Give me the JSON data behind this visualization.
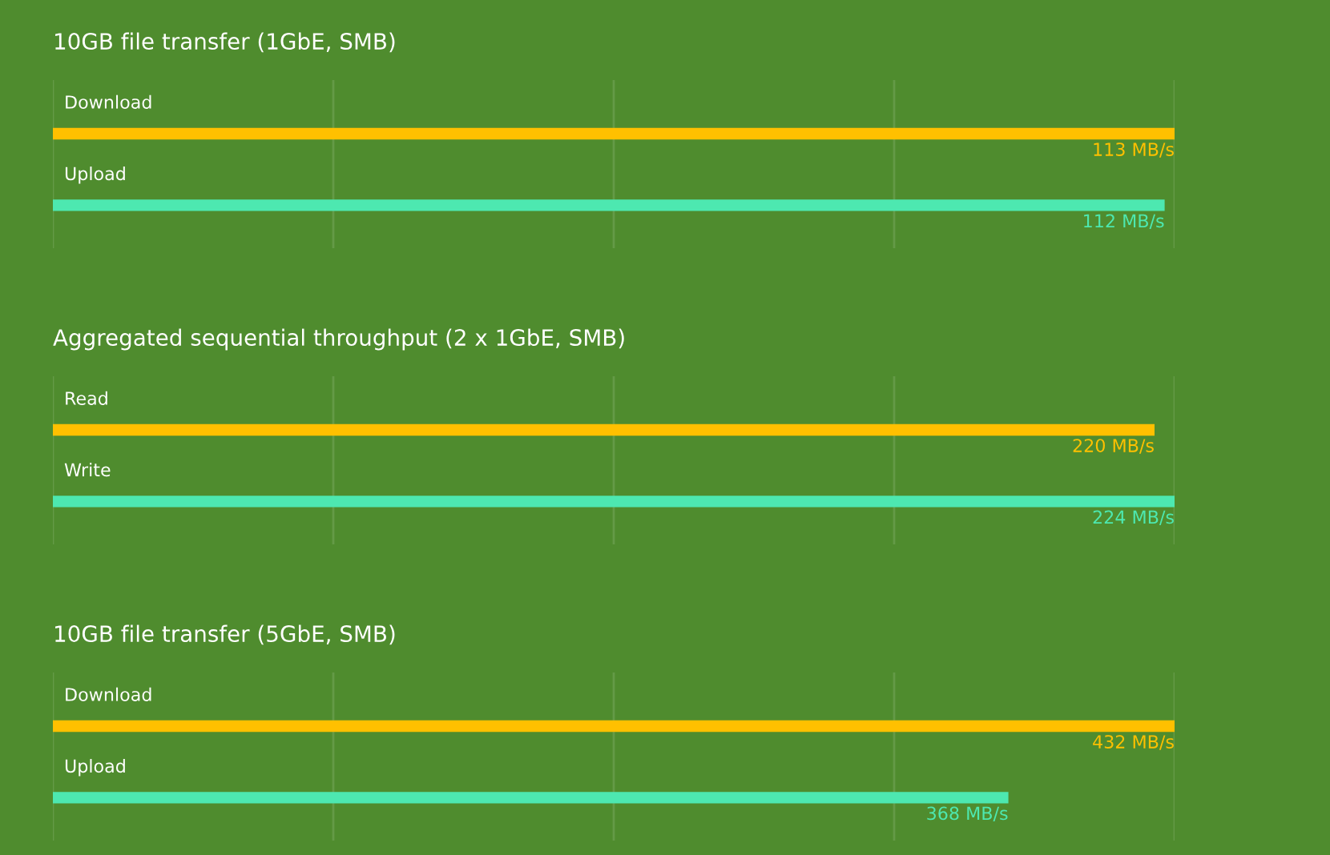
{
  "chart_data": [
    {
      "type": "bar",
      "orientation": "horizontal",
      "title": "10GB file transfer (1GbE, SMB)",
      "categories": [
        "Download",
        "Upload"
      ],
      "values": [
        113,
        112
      ],
      "colors": [
        "#ffc000",
        "#4de8b0"
      ],
      "value_labels": [
        "113 MB/s",
        "112 MB/s"
      ],
      "xlim": [
        0,
        113
      ],
      "xticks": [
        {
          "value": 0,
          "label": null
        },
        {
          "value": 28.25,
          "label": null
        },
        {
          "value": 56.5,
          "label": null
        },
        {
          "value": 84.75,
          "label": null
        },
        {
          "value": 113,
          "label": null
        }
      ],
      "grid": "x",
      "legend": false
    },
    {
      "type": "bar",
      "orientation": "horizontal",
      "title": "Aggregated sequential throughput (2 x 1GbE, SMB)",
      "categories": [
        "Read",
        "Write"
      ],
      "values": [
        220,
        224
      ],
      "colors": [
        "#ffc000",
        "#4de8b0"
      ],
      "value_labels": [
        "220 MB/s",
        "224 MB/s"
      ],
      "xlim": [
        0,
        224
      ],
      "xticks": [
        {
          "value": 0,
          "label": null
        },
        {
          "value": 56,
          "label": null
        },
        {
          "value": 112,
          "label": null
        },
        {
          "value": 168,
          "label": null
        },
        {
          "value": 224,
          "label": null
        }
      ],
      "grid": "x",
      "legend": false
    },
    {
      "type": "bar",
      "orientation": "horizontal",
      "title": "10GB file transfer (5GbE, SMB)",
      "categories": [
        "Download",
        "Upload"
      ],
      "values": [
        432,
        368
      ],
      "colors": [
        "#ffc000",
        "#4de8b0"
      ],
      "value_labels": [
        "432 MB/s",
        "368 MB/s"
      ],
      "xlim": [
        0,
        432
      ],
      "xticks": [
        {
          "value": 0,
          "label": null
        },
        {
          "value": 108,
          "label": null
        },
        {
          "value": 216,
          "label": null
        },
        {
          "value": 324,
          "label": null
        },
        {
          "value": 432,
          "label": null
        }
      ],
      "grid": "x",
      "legend": false
    }
  ]
}
